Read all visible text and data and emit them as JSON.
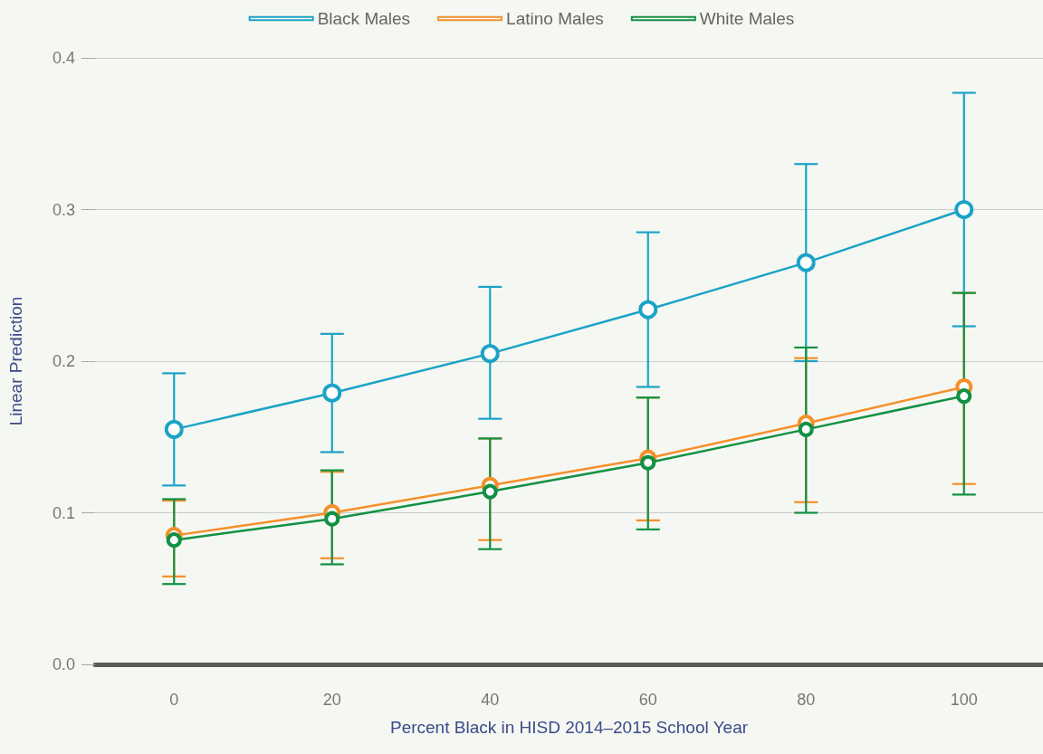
{
  "chart_data": {
    "type": "line",
    "xlabel": "Percent Black in HISD 2014–2015 School Year",
    "ylabel": "Linear Prediction",
    "x": [
      0,
      20,
      40,
      60,
      80,
      100
    ],
    "series": [
      {
        "name": "Black Males",
        "color": "#1ba3c6",
        "values": [
          0.155,
          0.179,
          0.205,
          0.234,
          0.265,
          0.3
        ],
        "errors": [
          [
            0.118,
            0.192
          ],
          [
            0.14,
            0.218
          ],
          [
            0.162,
            0.249
          ],
          [
            0.183,
            0.285
          ],
          [
            0.2,
            0.33
          ],
          [
            0.223,
            0.377
          ]
        ]
      },
      {
        "name": "Latino Males",
        "color": "#f58f2a",
        "values": [
          0.085,
          0.1,
          0.118,
          0.136,
          0.159,
          0.183
        ],
        "errors": [
          [
            0.058,
            0.108
          ],
          [
            0.07,
            0.127
          ],
          [
            0.082,
            0.149
          ],
          [
            0.095,
            0.176
          ],
          [
            0.107,
            0.202
          ],
          [
            0.119,
            0.245
          ]
        ]
      },
      {
        "name": "White Males",
        "color": "#119144",
        "values": [
          0.082,
          0.096,
          0.114,
          0.133,
          0.155,
          0.177
        ],
        "errors": [
          [
            0.053,
            0.109
          ],
          [
            0.066,
            0.128
          ],
          [
            0.076,
            0.149
          ],
          [
            0.089,
            0.176
          ],
          [
            0.1,
            0.209
          ],
          [
            0.112,
            0.245
          ]
        ]
      }
    ],
    "xlim": [
      -10,
      110
    ],
    "xticks": [
      0,
      20,
      40,
      60,
      80,
      100
    ],
    "ylim": [
      0,
      0.4
    ],
    "yticks": [
      {
        "value": 0,
        "label": "0.0"
      },
      0.1,
      0.2,
      0.3,
      0.4
    ],
    "grid": "y",
    "legend": "top",
    "marker": "circle",
    "line_style": "solid"
  }
}
